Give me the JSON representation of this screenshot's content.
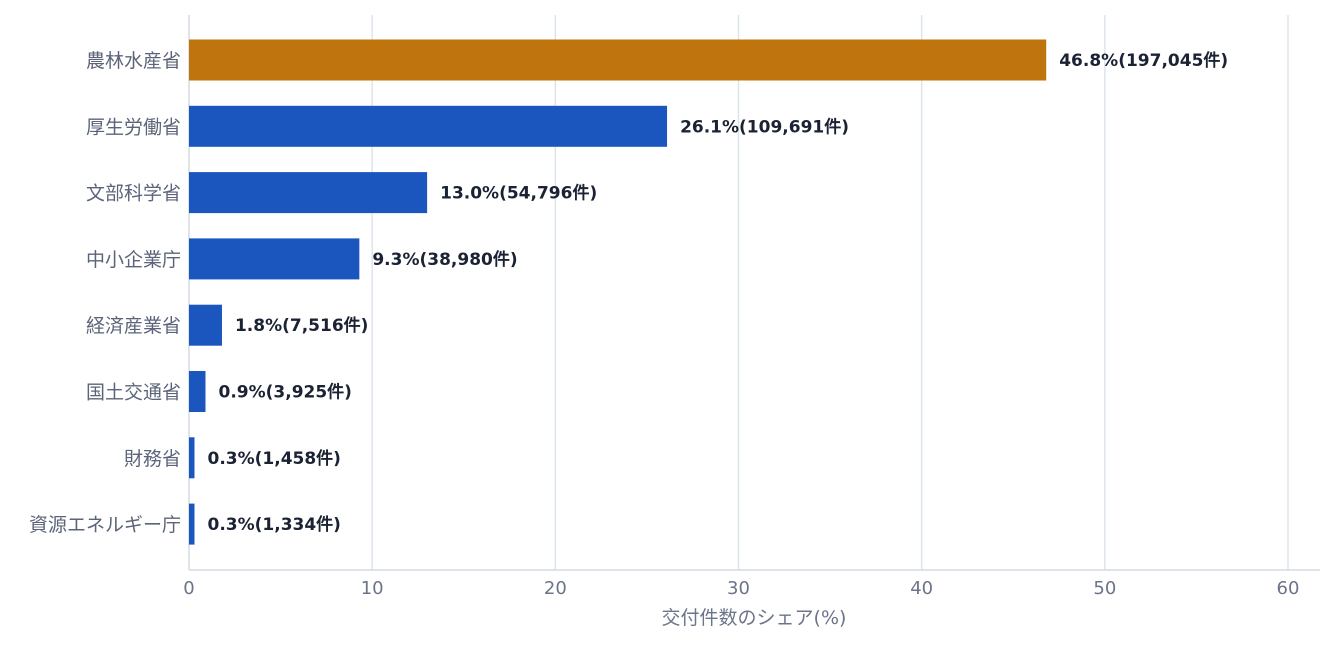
{
  "chart_data": {
    "type": "bar",
    "orientation": "horizontal",
    "categories": [
      "農林水産省",
      "厚生労働省",
      "文部科学省",
      "中小企業庁",
      "経済産業省",
      "国土交通省",
      "財務省",
      "資源エネルギー庁"
    ],
    "values": [
      46.8,
      26.1,
      13.0,
      9.3,
      1.8,
      0.9,
      0.3,
      0.3
    ],
    "data_labels": [
      "46.8%(197,045件)",
      "26.1%(109,691件)",
      "13.0%(54,796件)",
      "9.3%(38,980件)",
      "1.8%(7,516件)",
      "0.9%(3,925件)",
      "0.3%(1,458件)",
      "0.3%(1,334件)"
    ],
    "xlabel": "交付件数のシェア(%)",
    "ylabel": "",
    "xlim": [
      0,
      60
    ],
    "x_ticks": [
      0,
      10,
      20,
      30,
      40,
      50,
      60
    ],
    "grid": "vertical",
    "highlight_index": 0,
    "colors": {
      "highlight": "#c0740e",
      "default": "#1a56be"
    }
  }
}
